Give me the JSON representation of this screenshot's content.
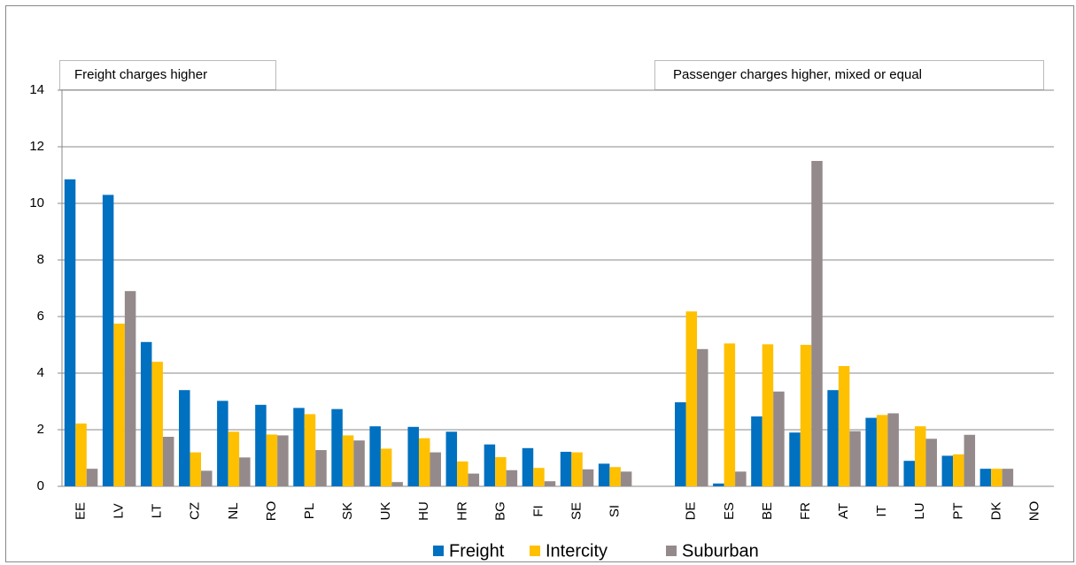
{
  "chart_data": {
    "type": "bar",
    "annotations": [
      "Freight charges higher",
      "Passenger charges higher, mixed or equal"
    ],
    "categories": [
      "EE",
      "LV",
      "LT",
      "CZ",
      "NL",
      "RO",
      "PL",
      "SK",
      "UK",
      "HU",
      "HR",
      "BG",
      "FI",
      "SE",
      "SI",
      null,
      "DE",
      "ES",
      "BE",
      "FR",
      "AT",
      "IT",
      "LU",
      "PT",
      "DK",
      "NO"
    ],
    "series": [
      {
        "name": "Freight",
        "color": "#0070c0",
        "values": [
          10.85,
          10.3,
          5.1,
          3.4,
          3.02,
          2.88,
          2.77,
          2.73,
          2.12,
          2.1,
          1.93,
          1.48,
          1.35,
          1.22,
          0.8,
          null,
          2.97,
          0.1,
          2.47,
          1.9,
          3.4,
          2.42,
          0.9,
          1.08,
          0.62,
          0
        ]
      },
      {
        "name": "Intercity",
        "color": "#ffc000",
        "values": [
          2.22,
          5.75,
          4.4,
          1.2,
          1.93,
          1.83,
          2.55,
          1.8,
          1.33,
          1.7,
          0.88,
          1.03,
          0.65,
          1.2,
          0.68,
          null,
          6.18,
          5.05,
          5.02,
          5.0,
          4.25,
          2.52,
          2.12,
          1.13,
          0.62,
          0
        ]
      },
      {
        "name": "Suburban",
        "color": "#948a8c",
        "values": [
          0.62,
          6.9,
          1.75,
          0.55,
          1.02,
          1.8,
          1.28,
          1.62,
          0.15,
          1.2,
          0.45,
          0.57,
          0.18,
          0.6,
          0.52,
          null,
          4.85,
          0.52,
          3.35,
          11.5,
          1.95,
          2.58,
          1.68,
          1.82,
          0.62,
          0
        ]
      }
    ],
    "ylim": [
      0,
      14
    ],
    "yticks": [
      0,
      2,
      4,
      6,
      8,
      10,
      12,
      14
    ],
    "grid": true
  }
}
